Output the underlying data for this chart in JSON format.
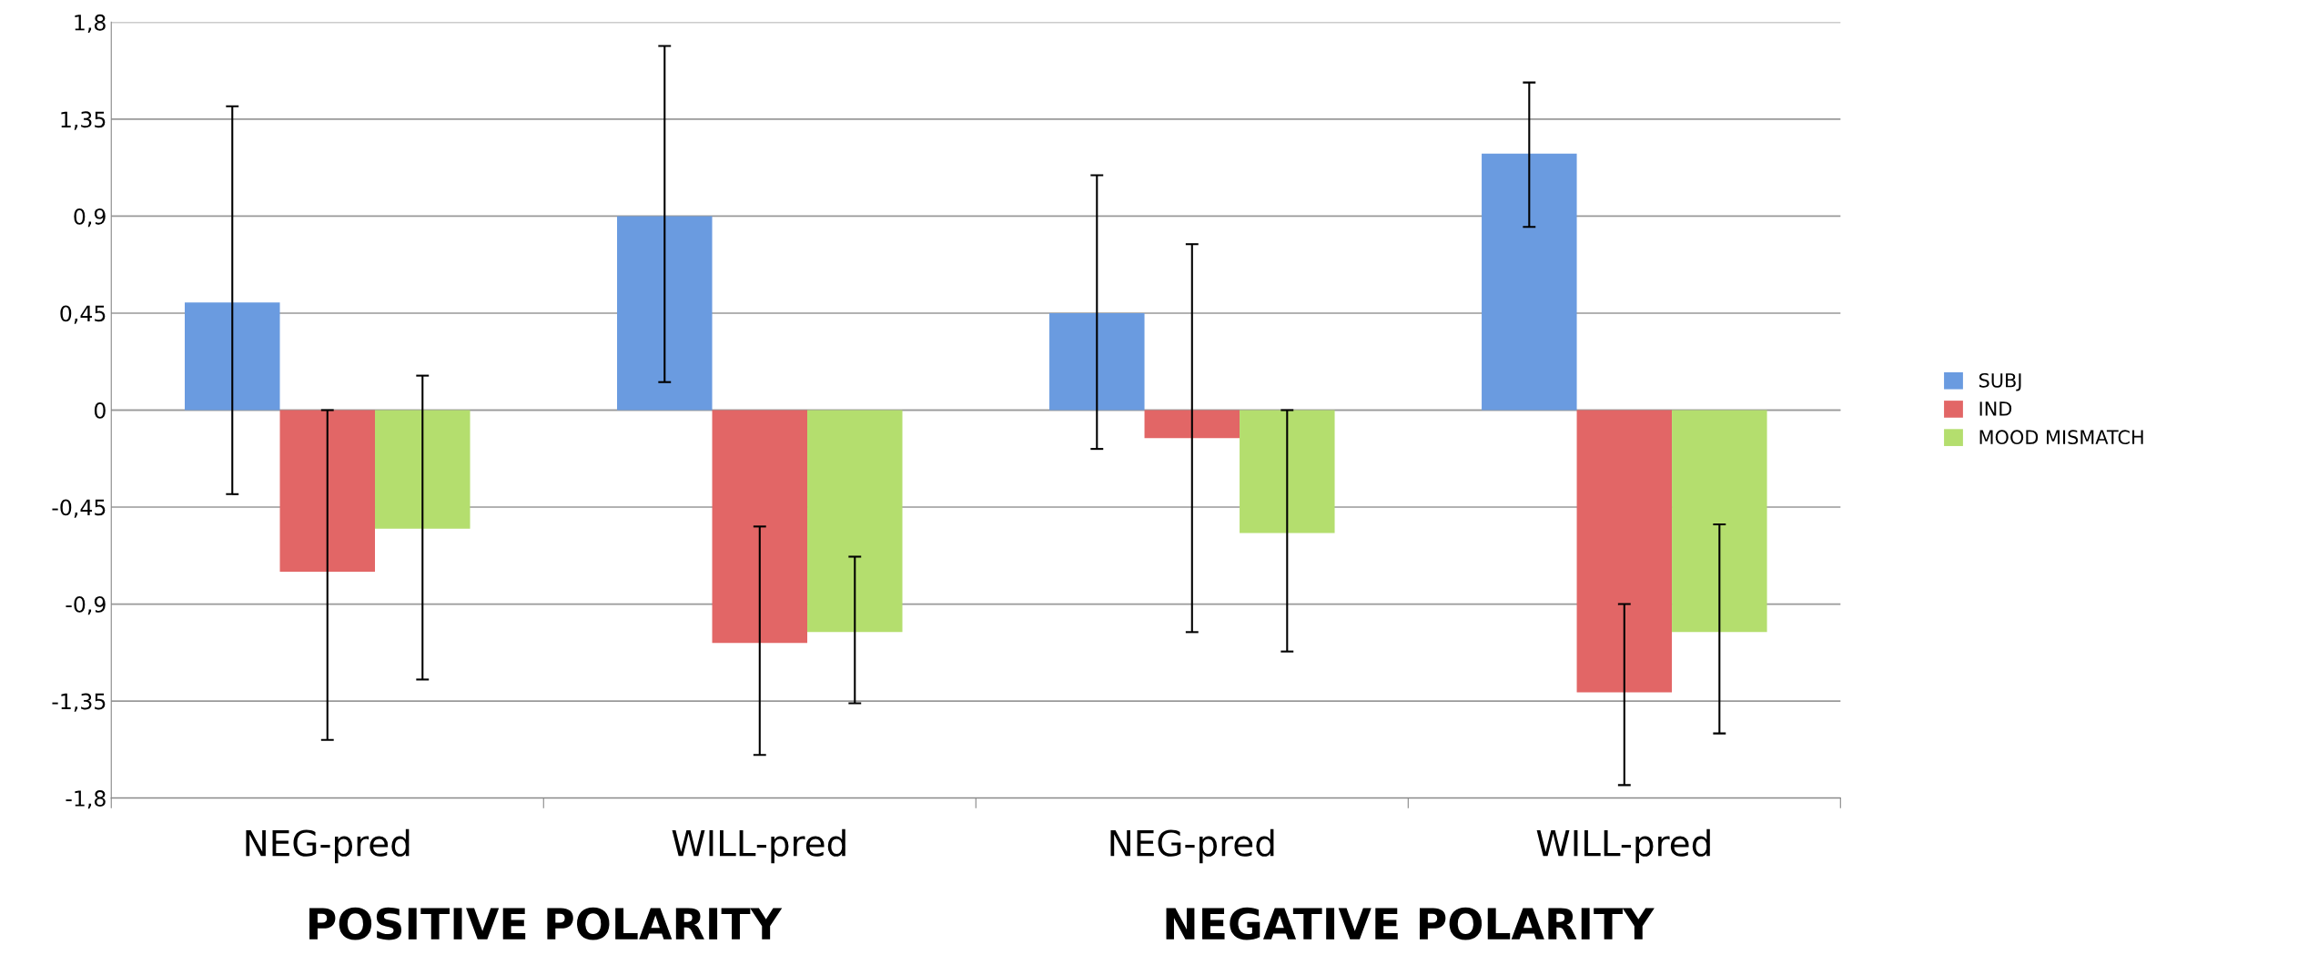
{
  "chart_data": {
    "type": "bar",
    "categories": [
      "NEG-pred",
      "WILL-pred",
      "NEG-pred",
      "WILL-pred"
    ],
    "series": [
      {
        "name": "SUBJ",
        "color": "#6a9be0",
        "values": [
          0.5,
          0.9,
          0.45,
          1.19
        ],
        "errors": [
          [
            -0.39,
            1.41
          ],
          [
            0.13,
            1.69
          ],
          [
            -0.18,
            1.09
          ],
          [
            0.85,
            1.52
          ]
        ]
      },
      {
        "name": "IND",
        "color": "#e26666",
        "values": [
          -0.75,
          -1.08,
          -0.13,
          -1.31
        ],
        "errors": [
          [
            -1.53,
            0.0
          ],
          [
            -1.6,
            -0.54
          ],
          [
            -1.03,
            0.77
          ],
          [
            -1.74,
            -0.9
          ]
        ]
      },
      {
        "name": "MOOD MISMATCH",
        "color": "#b4de6e",
        "values": [
          -0.55,
          -1.03,
          -0.57,
          -1.03
        ],
        "errors": [
          [
            -1.25,
            0.16
          ],
          [
            -1.36,
            -0.68
          ],
          [
            -1.12,
            0.0
          ],
          [
            -1.5,
            -0.53
          ]
        ]
      }
    ],
    "ylim": [
      -1.8,
      1.8
    ],
    "yticks": [
      {
        "value": -1.8,
        "label": "-1,8"
      },
      {
        "value": -1.35,
        "label": "-1,35"
      },
      {
        "value": -0.9,
        "label": "-0,9"
      },
      {
        "value": -0.45,
        "label": "-0,45"
      },
      0,
      {
        "value": 0.45,
        "label": "0,45"
      },
      {
        "value": 0.9,
        "label": "0,9"
      },
      {
        "value": 1.35,
        "label": "1,35"
      },
      {
        "value": 1.8,
        "label": "1,8"
      }
    ],
    "grid": "y",
    "legend": "right",
    "annotations": [
      "POSITIVE POLARITY",
      "NEGATIVE POLARITY"
    ]
  }
}
